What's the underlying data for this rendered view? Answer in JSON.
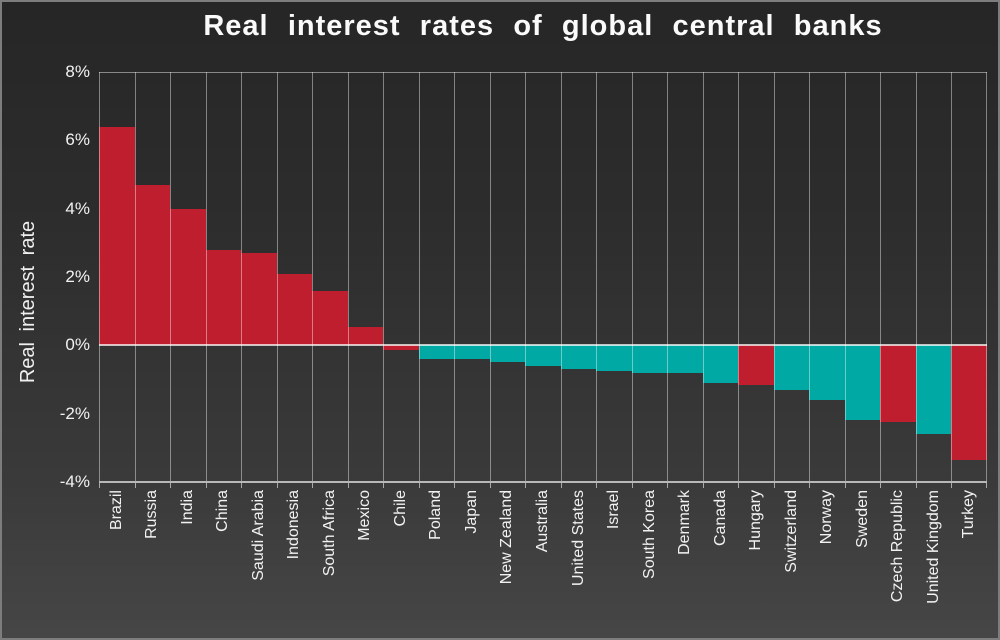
{
  "chart_data": {
    "type": "bar",
    "title": "Real interest rates of global central banks",
    "ylabel": "Real interest rate",
    "xlabel": "",
    "ylim": [
      -4,
      8
    ],
    "yticks": [
      {
        "value": 8,
        "label": "8%"
      },
      {
        "value": 6,
        "label": "6%"
      },
      {
        "value": 4,
        "label": "4%"
      },
      {
        "value": 2,
        "label": "2%"
      },
      {
        "value": 0,
        "label": "0%"
      },
      {
        "value": -2,
        "label": "-2%"
      },
      {
        "value": -4,
        "label": "-4%"
      }
    ],
    "grid": "vertical-only",
    "legend": "none",
    "bar_gap": 0,
    "palette": {
      "red": "#bf1e2e",
      "teal": "#00a9a4"
    },
    "categories": [
      "Brazil",
      "Russia",
      "India",
      "China",
      "Saudi Arabia",
      "Indonesia",
      "South Africa",
      "Mexico",
      "Chile",
      "Poland",
      "Japan",
      "New Zealand",
      "Australia",
      "United States",
      "Israel",
      "South Korea",
      "Denmark",
      "Canada",
      "Hungary",
      "Switzerland",
      "Norway",
      "Sweden",
      "Czech Republic",
      "United Kingdom",
      "Turkey"
    ],
    "values": [
      6.4,
      4.7,
      4.0,
      2.8,
      2.7,
      2.1,
      1.6,
      0.55,
      -0.15,
      -0.4,
      -0.4,
      -0.5,
      -0.6,
      -0.7,
      -0.75,
      -0.8,
      -0.8,
      -1.1,
      -1.15,
      -1.3,
      -1.6,
      -2.2,
      -2.25,
      -2.6,
      -3.35
    ],
    "bar_colors": [
      "red",
      "red",
      "red",
      "red",
      "red",
      "red",
      "red",
      "red",
      "red",
      "teal",
      "teal",
      "teal",
      "teal",
      "teal",
      "teal",
      "teal",
      "teal",
      "teal",
      "red",
      "teal",
      "teal",
      "teal",
      "red",
      "teal",
      "red"
    ]
  }
}
